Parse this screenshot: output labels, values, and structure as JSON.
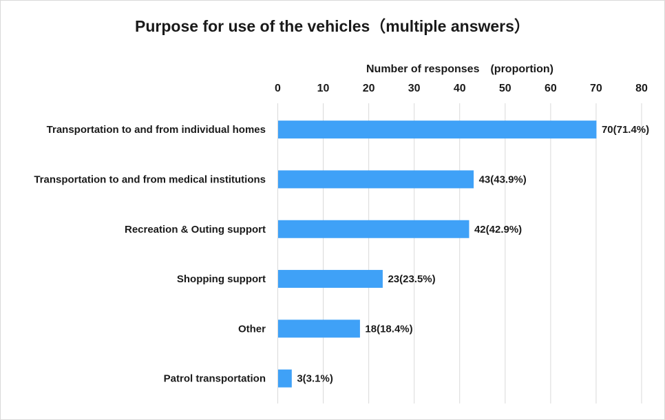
{
  "chart_data": {
    "type": "bar",
    "orientation": "horizontal",
    "title": "Purpose for use of the vehicles（multiple answers）",
    "xlabel": "Number of responses　(proportion)",
    "ylabel": "",
    "xlim": [
      0,
      80
    ],
    "xticks": [
      0,
      10,
      20,
      30,
      40,
      50,
      60,
      70,
      80
    ],
    "xaxis_position": "top",
    "grid": true,
    "legend": "none",
    "bar_color": "#3fa1f7",
    "categories": [
      "Transportation to and from individual homes",
      "Transportation to and from medical institutions",
      "Recreation & Outing support",
      "Shopping support",
      "Other",
      "Patrol transportation"
    ],
    "values": [
      70,
      43,
      42,
      23,
      18,
      3
    ],
    "data_labels": [
      "70(71.4%)",
      "43(43.9%)",
      "42(42.9%)",
      "23(23.5%)",
      "18(18.4%)",
      "3(3.1%)"
    ]
  }
}
